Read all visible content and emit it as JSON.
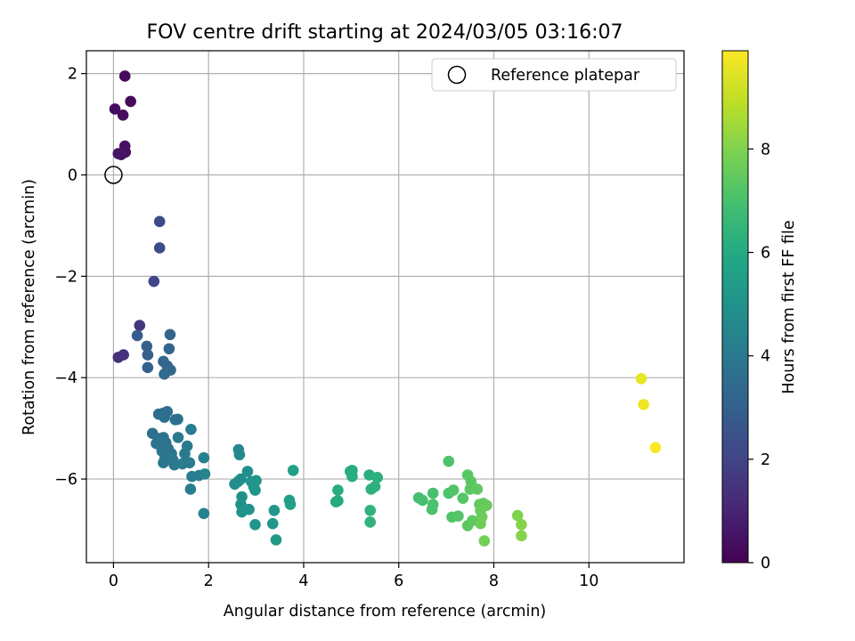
{
  "chart_data": {
    "type": "scatter",
    "title": "FOV centre drift starting at 2024/03/05 03:16:07",
    "xlabel": "Angular distance from reference (arcmin)",
    "ylabel": "Rotation from reference (arcmin)",
    "xlim": [
      -0.57,
      12.0
    ],
    "ylim": [
      -7.65,
      2.45
    ],
    "xticks": [
      0,
      2,
      4,
      6,
      8,
      10
    ],
    "yticks": [
      -6,
      -4,
      -2,
      0,
      2
    ],
    "grid": true,
    "legend": {
      "position": "top-right",
      "entries": [
        "Reference platepar"
      ]
    },
    "colorbar": {
      "label": "Hours from first FF file",
      "colormap": "viridis",
      "range": [
        0,
        9.9
      ],
      "ticks": [
        0,
        2,
        4,
        6,
        8
      ]
    },
    "reference_point": {
      "x": 0.0,
      "y": 0.0,
      "label": "Reference platepar"
    },
    "points": [
      {
        "x": 0.24,
        "y": 1.95,
        "c": 0.2
      },
      {
        "x": 0.36,
        "y": 1.45,
        "c": 0.25
      },
      {
        "x": 0.03,
        "y": 1.3,
        "c": 0.3
      },
      {
        "x": 0.2,
        "y": 1.18,
        "c": 0.35
      },
      {
        "x": 0.24,
        "y": 0.57,
        "c": 0.4
      },
      {
        "x": 0.25,
        "y": 0.45,
        "c": 0.45
      },
      {
        "x": 0.1,
        "y": 0.42,
        "c": 0.5
      },
      {
        "x": 0.16,
        "y": 0.4,
        "c": 0.55
      },
      {
        "x": 0.1,
        "y": -3.6,
        "c": 1.35
      },
      {
        "x": 0.21,
        "y": -3.55,
        "c": 1.4
      },
      {
        "x": 0.55,
        "y": -2.97,
        "c": 1.55
      },
      {
        "x": 0.85,
        "y": -2.1,
        "c": 2.1
      },
      {
        "x": 0.97,
        "y": -0.92,
        "c": 2.2
      },
      {
        "x": 0.97,
        "y": -1.44,
        "c": 2.3
      },
      {
        "x": 0.5,
        "y": -3.17,
        "c": 2.9
      },
      {
        "x": 0.72,
        "y": -3.55,
        "c": 3.0
      },
      {
        "x": 0.7,
        "y": -3.38,
        "c": 3.05
      },
      {
        "x": 0.72,
        "y": -3.8,
        "c": 3.1
      },
      {
        "x": 1.19,
        "y": -3.15,
        "c": 3.15
      },
      {
        "x": 1.17,
        "y": -3.43,
        "c": 3.2
      },
      {
        "x": 1.05,
        "y": -3.68,
        "c": 3.25
      },
      {
        "x": 1.13,
        "y": -3.77,
        "c": 3.3
      },
      {
        "x": 1.2,
        "y": -3.85,
        "c": 3.35
      },
      {
        "x": 1.07,
        "y": -3.93,
        "c": 3.4
      },
      {
        "x": 0.95,
        "y": -4.72,
        "c": 3.5
      },
      {
        "x": 1.05,
        "y": -4.7,
        "c": 3.55
      },
      {
        "x": 1.13,
        "y": -4.67,
        "c": 3.6
      },
      {
        "x": 1.07,
        "y": -4.78,
        "c": 3.62
      },
      {
        "x": 1.3,
        "y": -4.83,
        "c": 3.65
      },
      {
        "x": 1.35,
        "y": -4.82,
        "c": 3.68
      },
      {
        "x": 0.82,
        "y": -5.1,
        "c": 3.7
      },
      {
        "x": 0.95,
        "y": -5.2,
        "c": 3.72
      },
      {
        "x": 1.05,
        "y": -5.18,
        "c": 3.75
      },
      {
        "x": 0.9,
        "y": -5.3,
        "c": 3.78
      },
      {
        "x": 1.0,
        "y": -5.35,
        "c": 3.8
      },
      {
        "x": 1.1,
        "y": -5.28,
        "c": 3.82
      },
      {
        "x": 1.02,
        "y": -5.45,
        "c": 3.85
      },
      {
        "x": 1.15,
        "y": -5.4,
        "c": 3.88
      },
      {
        "x": 1.22,
        "y": -5.5,
        "c": 3.9
      },
      {
        "x": 1.08,
        "y": -5.6,
        "c": 3.92
      },
      {
        "x": 1.05,
        "y": -5.68,
        "c": 3.95
      },
      {
        "x": 1.25,
        "y": -5.62,
        "c": 3.98
      },
      {
        "x": 1.28,
        "y": -5.72,
        "c": 4.0
      },
      {
        "x": 1.36,
        "y": -5.18,
        "c": 4.02
      },
      {
        "x": 1.5,
        "y": -5.5,
        "c": 4.05
      },
      {
        "x": 1.55,
        "y": -5.35,
        "c": 4.08
      },
      {
        "x": 1.45,
        "y": -5.7,
        "c": 4.1
      },
      {
        "x": 1.6,
        "y": -5.68,
        "c": 4.12
      },
      {
        "x": 1.63,
        "y": -5.02,
        "c": 4.15
      },
      {
        "x": 1.65,
        "y": -5.95,
        "c": 4.18
      },
      {
        "x": 1.62,
        "y": -6.2,
        "c": 4.2
      },
      {
        "x": 1.8,
        "y": -5.93,
        "c": 4.25
      },
      {
        "x": 1.9,
        "y": -5.58,
        "c": 4.3
      },
      {
        "x": 1.92,
        "y": -5.9,
        "c": 4.35
      },
      {
        "x": 1.9,
        "y": -6.68,
        "c": 4.4
      },
      {
        "x": 2.63,
        "y": -5.42,
        "c": 4.6
      },
      {
        "x": 2.65,
        "y": -5.52,
        "c": 4.65
      },
      {
        "x": 2.55,
        "y": -6.1,
        "c": 4.7
      },
      {
        "x": 2.62,
        "y": -6.05,
        "c": 4.75
      },
      {
        "x": 2.68,
        "y": -6.0,
        "c": 4.8
      },
      {
        "x": 2.82,
        "y": -5.85,
        "c": 4.85
      },
      {
        "x": 2.7,
        "y": -6.35,
        "c": 4.9
      },
      {
        "x": 2.68,
        "y": -6.5,
        "c": 4.95
      },
      {
        "x": 2.72,
        "y": -6.58,
        "c": 5.0
      },
      {
        "x": 2.7,
        "y": -6.65,
        "c": 5.02
      },
      {
        "x": 2.85,
        "y": -6.6,
        "c": 5.05
      },
      {
        "x": 2.9,
        "y": -6.05,
        "c": 5.08
      },
      {
        "x": 2.95,
        "y": -6.15,
        "c": 5.1
      },
      {
        "x": 3.0,
        "y": -6.03,
        "c": 5.12
      },
      {
        "x": 2.98,
        "y": -6.22,
        "c": 5.15
      },
      {
        "x": 2.98,
        "y": -6.9,
        "c": 5.18
      },
      {
        "x": 3.35,
        "y": -6.88,
        "c": 5.2
      },
      {
        "x": 3.38,
        "y": -6.62,
        "c": 5.25
      },
      {
        "x": 3.42,
        "y": -7.2,
        "c": 5.3
      },
      {
        "x": 3.7,
        "y": -6.42,
        "c": 5.5
      },
      {
        "x": 3.72,
        "y": -6.5,
        "c": 5.55
      },
      {
        "x": 3.78,
        "y": -5.83,
        "c": 5.6
      },
      {
        "x": 4.68,
        "y": -6.45,
        "c": 6.0
      },
      {
        "x": 4.72,
        "y": -6.43,
        "c": 6.02
      },
      {
        "x": 4.72,
        "y": -6.22,
        "c": 6.05
      },
      {
        "x": 4.98,
        "y": -5.85,
        "c": 6.1
      },
      {
        "x": 5.02,
        "y": -5.83,
        "c": 6.12
      },
      {
        "x": 5.02,
        "y": -5.95,
        "c": 6.15
      },
      {
        "x": 5.38,
        "y": -5.92,
        "c": 6.2
      },
      {
        "x": 5.55,
        "y": -5.97,
        "c": 6.25
      },
      {
        "x": 5.5,
        "y": -6.15,
        "c": 6.28
      },
      {
        "x": 5.42,
        "y": -6.2,
        "c": 6.3
      },
      {
        "x": 5.4,
        "y": -6.62,
        "c": 6.35
      },
      {
        "x": 5.4,
        "y": -6.85,
        "c": 6.4
      },
      {
        "x": 6.42,
        "y": -6.37,
        "c": 6.9
      },
      {
        "x": 6.5,
        "y": -6.42,
        "c": 6.95
      },
      {
        "x": 6.72,
        "y": -6.28,
        "c": 7.0
      },
      {
        "x": 6.72,
        "y": -6.5,
        "c": 7.02
      },
      {
        "x": 6.7,
        "y": -6.6,
        "c": 7.05
      },
      {
        "x": 7.05,
        "y": -5.65,
        "c": 7.1
      },
      {
        "x": 7.05,
        "y": -6.28,
        "c": 7.12
      },
      {
        "x": 7.15,
        "y": -6.22,
        "c": 7.15
      },
      {
        "x": 7.12,
        "y": -6.75,
        "c": 7.18
      },
      {
        "x": 7.25,
        "y": -6.73,
        "c": 7.2
      },
      {
        "x": 7.35,
        "y": -6.38,
        "c": 7.25
      },
      {
        "x": 7.45,
        "y": -5.92,
        "c": 7.3
      },
      {
        "x": 7.52,
        "y": -6.05,
        "c": 7.32
      },
      {
        "x": 7.5,
        "y": -6.2,
        "c": 7.35
      },
      {
        "x": 7.45,
        "y": -6.92,
        "c": 7.38
      },
      {
        "x": 7.55,
        "y": -6.82,
        "c": 7.4
      },
      {
        "x": 7.65,
        "y": -6.2,
        "c": 7.45
      },
      {
        "x": 7.7,
        "y": -6.5,
        "c": 7.48
      },
      {
        "x": 7.78,
        "y": -6.48,
        "c": 7.5
      },
      {
        "x": 7.85,
        "y": -6.52,
        "c": 7.55
      },
      {
        "x": 7.72,
        "y": -6.62,
        "c": 7.6
      },
      {
        "x": 7.75,
        "y": -6.75,
        "c": 7.65
      },
      {
        "x": 7.72,
        "y": -6.88,
        "c": 7.7
      },
      {
        "x": 7.8,
        "y": -7.22,
        "c": 7.75
      },
      {
        "x": 8.5,
        "y": -6.72,
        "c": 8.0
      },
      {
        "x": 8.58,
        "y": -6.9,
        "c": 8.05
      },
      {
        "x": 8.58,
        "y": -7.12,
        "c": 8.1
      },
      {
        "x": 11.1,
        "y": -4.02,
        "c": 9.6
      },
      {
        "x": 11.15,
        "y": -4.53,
        "c": 9.7
      },
      {
        "x": 11.4,
        "y": -5.38,
        "c": 9.85
      }
    ]
  }
}
